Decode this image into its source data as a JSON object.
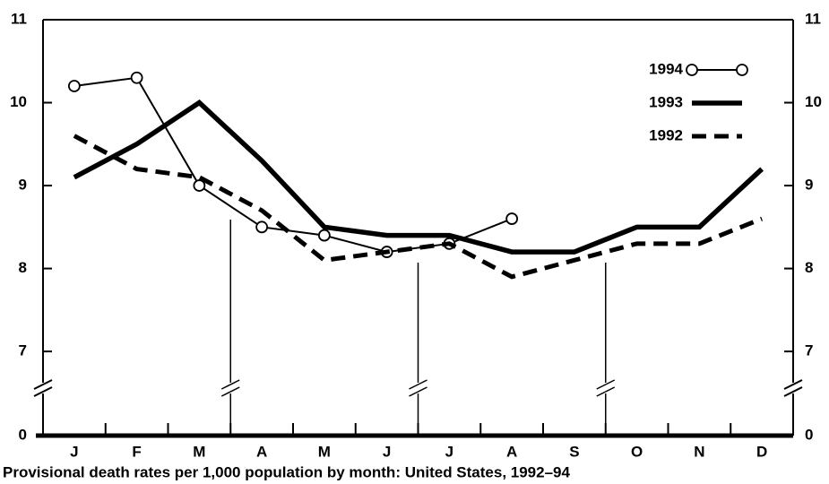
{
  "chart_data": {
    "type": "line",
    "title": "Provisional death rates per 1,000 population by month: United States, 1992–94",
    "categories": [
      "J",
      "F",
      "M",
      "A",
      "M",
      "J",
      "J",
      "A",
      "S",
      "O",
      "N",
      "D"
    ],
    "series": [
      {
        "name": "1994",
        "color": "#000000",
        "line_style": "markers",
        "values": [
          10.2,
          10.3,
          9.0,
          8.5,
          8.4,
          8.2,
          8.3,
          8.6,
          null,
          null,
          null,
          null
        ]
      },
      {
        "name": "1993",
        "color": "#000000",
        "line_style": "solid",
        "values": [
          9.1,
          9.5,
          10.0,
          9.3,
          8.5,
          8.4,
          8.4,
          8.2,
          8.2,
          8.5,
          8.5,
          9.2
        ]
      },
      {
        "name": "1992",
        "color": "#000000",
        "line_style": "dashed",
        "values": [
          9.6,
          9.2,
          9.1,
          8.7,
          8.1,
          8.2,
          8.3,
          7.9,
          8.1,
          8.3,
          8.3,
          8.6
        ]
      }
    ],
    "ylim": [
      0,
      11
    ],
    "y_break": [
      0,
      6.45
    ],
    "yticks": [
      0,
      7,
      8,
      9,
      10,
      11
    ],
    "legend": "top-right",
    "grid": false
  }
}
